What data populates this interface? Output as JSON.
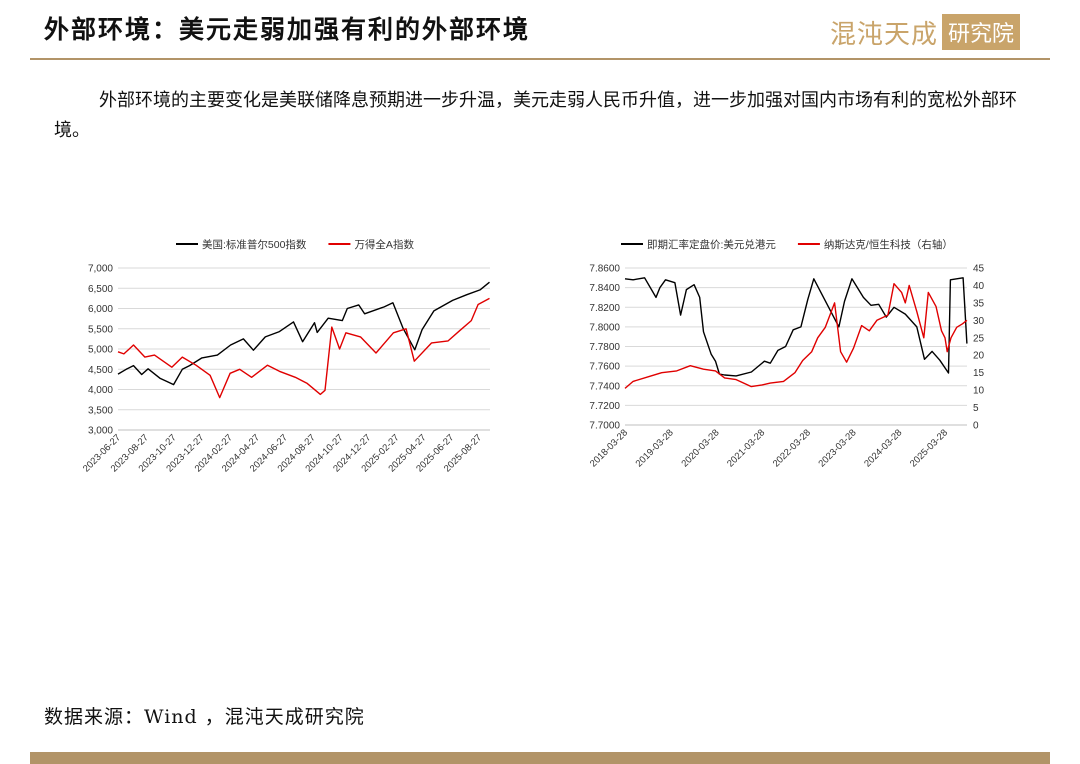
{
  "header": {
    "title": "外部环境：美元走弱加强有利的外部环境",
    "logo_text_a": "混沌天成",
    "logo_text_b": "研究院"
  },
  "intro": "外部环境的主要变化是美联储降息预期进一步升温，美元走弱人民币升值，进一步加强对国内市场有利的宽松外部环境。",
  "footer": {
    "source": "数据来源：Wind ，混沌天成研究院"
  },
  "colors": {
    "gold": "#b29468",
    "black_series": "#000000",
    "red_series": "#e00000",
    "grid": "#d9d9d9"
  },
  "chart_data": [
    {
      "type": "line",
      "dual_axis": false,
      "legend": "top",
      "grid": true,
      "ylim": [
        3000,
        7000
      ],
      "yticks": [
        "3,000",
        "3,500",
        "4,000",
        "4,500",
        "5,000",
        "5,500",
        "6,000",
        "6,500",
        "7,000"
      ],
      "xticks": [
        "2023-06-27",
        "2023-08-27",
        "2023-10-27",
        "2023-12-27",
        "2024-02-27",
        "2024-04-27",
        "2024-06-27",
        "2024-08-27",
        "2024-10-27",
        "2024-12-27",
        "2025-02-27",
        "2025-04-27",
        "2025-06-27",
        "2025-08-27"
      ],
      "x_end": "2025-09-20",
      "series": [
        {
          "name": "美国:标准普尔500指数",
          "color": "#000000",
          "points": [
            [
              "2023-06-27",
              4380
            ],
            [
              "2023-07-15",
              4500
            ],
            [
              "2023-07-31",
              4590
            ],
            [
              "2023-08-18",
              4370
            ],
            [
              "2023-09-01",
              4510
            ],
            [
              "2023-09-27",
              4280
            ],
            [
              "2023-10-27",
              4120
            ],
            [
              "2023-11-15",
              4500
            ],
            [
              "2023-12-01",
              4590
            ],
            [
              "2023-12-28",
              4780
            ],
            [
              "2024-01-31",
              4850
            ],
            [
              "2024-02-29",
              5100
            ],
            [
              "2024-03-28",
              5250
            ],
            [
              "2024-04-19",
              4970
            ],
            [
              "2024-05-15",
              5300
            ],
            [
              "2024-06-15",
              5430
            ],
            [
              "2024-07-16",
              5670
            ],
            [
              "2024-08-05",
              5180
            ],
            [
              "2024-08-31",
              5650
            ],
            [
              "2024-09-06",
              5410
            ],
            [
              "2024-09-30",
              5760
            ],
            [
              "2024-10-31",
              5700
            ],
            [
              "2024-11-11",
              6000
            ],
            [
              "2024-12-06",
              6090
            ],
            [
              "2024-12-19",
              5870
            ],
            [
              "2025-01-31",
              6040
            ],
            [
              "2025-02-19",
              6140
            ],
            [
              "2025-03-13",
              5520
            ],
            [
              "2025-04-08",
              4980
            ],
            [
              "2025-04-24",
              5480
            ],
            [
              "2025-05-20",
              5940
            ],
            [
              "2025-06-30",
              6200
            ],
            [
              "2025-07-31",
              6340
            ],
            [
              "2025-08-29",
              6460
            ],
            [
              "2025-09-19",
              6650
            ]
          ]
        },
        {
          "name": "万得全A指数",
          "color": "#e00000",
          "points": [
            [
              "2023-06-27",
              4930
            ],
            [
              "2023-07-10",
              4880
            ],
            [
              "2023-07-31",
              5100
            ],
            [
              "2023-08-25",
              4800
            ],
            [
              "2023-09-15",
              4850
            ],
            [
              "2023-10-23",
              4550
            ],
            [
              "2023-11-15",
              4800
            ],
            [
              "2023-12-15",
              4600
            ],
            [
              "2024-01-15",
              4350
            ],
            [
              "2024-02-05",
              3800
            ],
            [
              "2024-02-28",
              4400
            ],
            [
              "2024-03-20",
              4500
            ],
            [
              "2024-04-15",
              4300
            ],
            [
              "2024-05-20",
              4600
            ],
            [
              "2024-06-15",
              4450
            ],
            [
              "2024-07-20",
              4300
            ],
            [
              "2024-08-15",
              4150
            ],
            [
              "2024-09-13",
              3880
            ],
            [
              "2024-09-23",
              3980
            ],
            [
              "2024-10-08",
              5540
            ],
            [
              "2024-10-25",
              5000
            ],
            [
              "2024-11-08",
              5400
            ],
            [
              "2024-12-10",
              5300
            ],
            [
              "2025-01-13",
              4900
            ],
            [
              "2025-02-20",
              5400
            ],
            [
              "2025-03-20",
              5500
            ],
            [
              "2025-04-07",
              4700
            ],
            [
              "2025-05-15",
              5150
            ],
            [
              "2025-06-20",
              5200
            ],
            [
              "2025-07-15",
              5450
            ],
            [
              "2025-08-10",
              5700
            ],
            [
              "2025-08-25",
              6100
            ],
            [
              "2025-09-19",
              6250
            ]
          ]
        }
      ]
    },
    {
      "type": "line",
      "dual_axis": true,
      "legend": "top",
      "grid": true,
      "ylim_left": [
        7.7,
        7.86
      ],
      "yticks_left": [
        "7.7000",
        "7.7200",
        "7.7400",
        "7.7600",
        "7.7800",
        "7.8000",
        "7.8200",
        "7.8400",
        "7.8600"
      ],
      "ylim_right": [
        0,
        45
      ],
      "yticks_right": [
        "0",
        "5",
        "10",
        "15",
        "20",
        "25",
        "30",
        "35",
        "40",
        "45"
      ],
      "xticks": [
        "2018-03-28",
        "2019-03-28",
        "2020-03-28",
        "2021-03-28",
        "2022-03-28",
        "2023-03-28",
        "2024-03-28",
        "2025-03-28"
      ],
      "x_end": "2025-09-20",
      "series": [
        {
          "name": "即期汇率定盘价:美元兑港元",
          "axis": "left",
          "color": "#000000",
          "points": [
            [
              "2018-03-28",
              7.849
            ],
            [
              "2018-06-01",
              7.848
            ],
            [
              "2018-09-01",
              7.85
            ],
            [
              "2018-12-01",
              7.83
            ],
            [
              "2019-01-01",
              7.84
            ],
            [
              "2019-02-15",
              7.848
            ],
            [
              "2019-05-01",
              7.845
            ],
            [
              "2019-06-15",
              7.812
            ],
            [
              "2019-08-01",
              7.838
            ],
            [
              "2019-10-01",
              7.843
            ],
            [
              "2019-11-15",
              7.83
            ],
            [
              "2019-12-15",
              7.795
            ],
            [
              "2020-02-15",
              7.772
            ],
            [
              "2020-03-20",
              7.765
            ],
            [
              "2020-04-20",
              7.752
            ],
            [
              "2020-06-01",
              7.751
            ],
            [
              "2020-09-01",
              7.75
            ],
            [
              "2021-01-01",
              7.754
            ],
            [
              "2021-04-15",
              7.765
            ],
            [
              "2021-06-01",
              7.763
            ],
            [
              "2021-08-01",
              7.776
            ],
            [
              "2021-10-01",
              7.78
            ],
            [
              "2021-12-01",
              7.797
            ],
            [
              "2022-02-01",
              7.8
            ],
            [
              "2022-03-28",
              7.828
            ],
            [
              "2022-05-15",
              7.849
            ],
            [
              "2022-12-01",
              7.8
            ],
            [
              "2023-01-15",
              7.826
            ],
            [
              "2023-03-15",
              7.849
            ],
            [
              "2023-06-15",
              7.83
            ],
            [
              "2023-08-15",
              7.822
            ],
            [
              "2023-10-15",
              7.823
            ],
            [
              "2023-12-15",
              7.81
            ],
            [
              "2024-02-15",
              7.82
            ],
            [
              "2024-05-15",
              7.813
            ],
            [
              "2024-08-15",
              7.8
            ],
            [
              "2024-10-15",
              7.767
            ],
            [
              "2024-12-15",
              7.775
            ],
            [
              "2025-02-15",
              7.766
            ],
            [
              "2025-04-25",
              7.753
            ],
            [
              "2025-05-10",
              7.848
            ],
            [
              "2025-06-30",
              7.849
            ],
            [
              "2025-08-20",
              7.85
            ],
            [
              "2025-09-05",
              7.815
            ],
            [
              "2025-09-19",
              7.783
            ]
          ]
        },
        {
          "name": "纳斯达克/恒生科技（右轴）",
          "axis": "right",
          "color": "#e00000",
          "points": [
            [
              "2018-03-28",
              10.5
            ],
            [
              "2018-06-01",
              12.5
            ],
            [
              "2018-10-15",
              14.0
            ],
            [
              "2019-01-15",
              15.0
            ],
            [
              "2019-05-15",
              15.5
            ],
            [
              "2019-09-01",
              17.0
            ],
            [
              "2019-12-15",
              16.0
            ],
            [
              "2020-03-20",
              15.5
            ],
            [
              "2020-06-01",
              13.5
            ],
            [
              "2020-09-01",
              13.0
            ],
            [
              "2020-12-31",
              11.0
            ],
            [
              "2021-03-28",
              11.5
            ],
            [
              "2021-06-01",
              12.0
            ],
            [
              "2021-09-15",
              12.5
            ],
            [
              "2021-12-15",
              15.0
            ],
            [
              "2022-02-15",
              18.5
            ],
            [
              "2022-04-28",
              21.0
            ],
            [
              "2022-06-15",
              25.0
            ],
            [
              "2022-08-15",
              28.0
            ],
            [
              "2022-10-28",
              35.0
            ],
            [
              "2022-12-15",
              21.0
            ],
            [
              "2023-02-01",
              18.0
            ],
            [
              "2023-03-28",
              22.0
            ],
            [
              "2023-06-01",
              28.5
            ],
            [
              "2023-08-01",
              27.0
            ],
            [
              "2023-10-01",
              30.0
            ],
            [
              "2023-12-28",
              31.5
            ],
            [
              "2024-02-15",
              40.5
            ],
            [
              "2024-04-15",
              38.0
            ],
            [
              "2024-05-15",
              35.0
            ],
            [
              "2024-06-15",
              40.0
            ],
            [
              "2024-08-15",
              32.5
            ],
            [
              "2024-10-10",
              25.0
            ],
            [
              "2024-11-15",
              38.0
            ],
            [
              "2025-01-15",
              34.0
            ],
            [
              "2025-02-28",
              27.0
            ],
            [
              "2025-03-28",
              25.0
            ],
            [
              "2025-04-15",
              21.0
            ],
            [
              "2025-05-15",
              25.0
            ],
            [
              "2025-06-30",
              28.0
            ],
            [
              "2025-08-15",
              29.0
            ],
            [
              "2025-09-19",
              30.0
            ]
          ]
        }
      ]
    }
  ]
}
